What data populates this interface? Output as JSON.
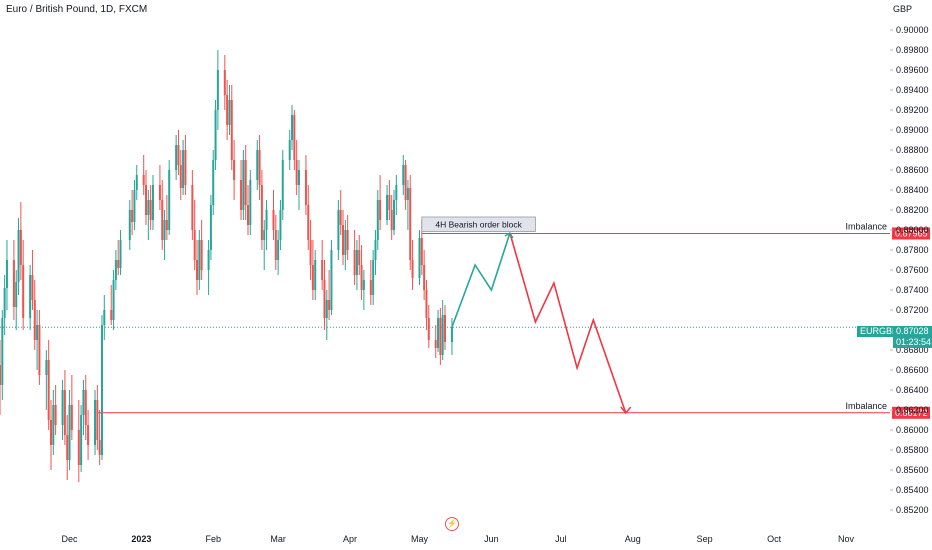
{
  "header": {
    "symbol_title": "Euro / British Pound, 1D, FXCM",
    "currency": "GBP"
  },
  "price_tags": {
    "symbol": "EURGBP",
    "last_price": "0.87028",
    "countdown": "01:23:54"
  },
  "colors": {
    "up": "#26a69a",
    "down": "#ef5350",
    "level": "#f23645",
    "last_price_line": "#26a69a",
    "axis_text": "#131722"
  },
  "chart_data": {
    "type": "candlestick",
    "title": "Euro / British Pound, 1D, FXCM",
    "y_axis": {
      "label": "GBP",
      "range": [
        0.851,
        0.901
      ],
      "ticks": [
        "0.90000",
        "0.89800",
        "0.89600",
        "0.89400",
        "0.89200",
        "0.89000",
        "0.88800",
        "0.88600",
        "0.88400",
        "0.88200",
        "0.88000",
        "0.87800",
        "0.87600",
        "0.87400",
        "0.87200",
        "0.87000",
        "0.86800",
        "0.86600",
        "0.86400",
        "0.86200",
        "0.86000",
        "0.85800",
        "0.85600",
        "0.85400",
        "0.85200"
      ]
    },
    "x_axis": {
      "range": [
        "2022-11-01",
        "2023-11-20"
      ],
      "ticks": [
        {
          "date": "2022-12-01",
          "label": "Dec"
        },
        {
          "date": "2023-01-01",
          "label": "2023",
          "bold": true
        },
        {
          "date": "2023-02-01",
          "label": "Feb"
        },
        {
          "date": "2023-03-01",
          "label": "Mar"
        },
        {
          "date": "2023-04-01",
          "label": "Apr"
        },
        {
          "date": "2023-05-01",
          "label": "May"
        },
        {
          "date": "2023-06-01",
          "label": "Jun"
        },
        {
          "date": "2023-07-01",
          "label": "Jul"
        },
        {
          "date": "2023-08-01",
          "label": "Aug"
        },
        {
          "date": "2023-09-01",
          "label": "Sep"
        },
        {
          "date": "2023-10-01",
          "label": "Oct"
        },
        {
          "date": "2023-11-01",
          "label": "Nov"
        }
      ]
    },
    "candles": [
      [
        "2022-11-01",
        0.8665,
        0.869,
        0.8615,
        0.8645
      ],
      [
        "2022-11-02",
        0.8645,
        0.872,
        0.863,
        0.8712
      ],
      [
        "2022-11-03",
        0.8712,
        0.8755,
        0.8695,
        0.8742
      ],
      [
        "2022-11-04",
        0.8742,
        0.879,
        0.872,
        0.877
      ],
      [
        "2022-11-07",
        0.877,
        0.879,
        0.871,
        0.8723
      ],
      [
        "2022-11-08",
        0.8723,
        0.876,
        0.87,
        0.8748
      ],
      [
        "2022-11-09",
        0.8748,
        0.8812,
        0.8735,
        0.88
      ],
      [
        "2022-11-10",
        0.88,
        0.8828,
        0.875,
        0.8765
      ],
      [
        "2022-11-11",
        0.8765,
        0.879,
        0.87,
        0.8712
      ],
      [
        "2022-11-14",
        0.8712,
        0.8765,
        0.87,
        0.8755
      ],
      [
        "2022-11-15",
        0.8755,
        0.878,
        0.872,
        0.873
      ],
      [
        "2022-11-16",
        0.873,
        0.875,
        0.868,
        0.869
      ],
      [
        "2022-11-17",
        0.869,
        0.872,
        0.866,
        0.8705
      ],
      [
        "2022-11-18",
        0.8705,
        0.872,
        0.8645,
        0.8655
      ],
      [
        "2022-11-21",
        0.8655,
        0.868,
        0.862,
        0.867
      ],
      [
        "2022-11-22",
        0.867,
        0.869,
        0.86,
        0.861
      ],
      [
        "2022-11-23",
        0.861,
        0.863,
        0.856,
        0.8585
      ],
      [
        "2022-11-24",
        0.8585,
        0.864,
        0.8575,
        0.8625
      ],
      [
        "2022-11-25",
        0.8625,
        0.8645,
        0.8595,
        0.8605
      ],
      [
        "2022-11-28",
        0.8605,
        0.865,
        0.859,
        0.864
      ],
      [
        "2022-11-29",
        0.864,
        0.866,
        0.8585,
        0.8595
      ],
      [
        "2022-11-30",
        0.8595,
        0.8615,
        0.855,
        0.857
      ],
      [
        "2022-12-01",
        0.857,
        0.864,
        0.856,
        0.8625
      ],
      [
        "2022-12-02",
        0.8625,
        0.8655,
        0.859,
        0.86
      ],
      [
        "2022-12-05",
        0.86,
        0.863,
        0.8548,
        0.8565
      ],
      [
        "2022-12-06",
        0.8565,
        0.8625,
        0.8558,
        0.8615
      ],
      [
        "2022-12-07",
        0.8615,
        0.865,
        0.8595,
        0.864
      ],
      [
        "2022-12-08",
        0.864,
        0.8655,
        0.859,
        0.8605
      ],
      [
        "2022-12-09",
        0.8605,
        0.862,
        0.857,
        0.8585
      ],
      [
        "2022-12-12",
        0.8585,
        0.864,
        0.8575,
        0.863
      ],
      [
        "2022-12-13",
        0.863,
        0.8645,
        0.858,
        0.859
      ],
      [
        "2022-12-14",
        0.859,
        0.862,
        0.8565,
        0.8575
      ],
      [
        "2022-12-15",
        0.8575,
        0.8715,
        0.857,
        0.8705
      ],
      [
        "2022-12-16",
        0.8705,
        0.8735,
        0.869,
        0.872
      ],
      [
        "2022-12-19",
        0.872,
        0.8745,
        0.8705,
        0.871
      ],
      [
        "2022-12-20",
        0.871,
        0.876,
        0.87,
        0.875
      ],
      [
        "2022-12-21",
        0.875,
        0.878,
        0.874,
        0.877
      ],
      [
        "2022-12-22",
        0.877,
        0.879,
        0.8755,
        0.8762
      ],
      [
        "2022-12-23",
        0.8762,
        0.88,
        0.8755,
        0.879
      ],
      [
        "2022-12-27",
        0.879,
        0.883,
        0.878,
        0.882
      ],
      [
        "2022-12-28",
        0.882,
        0.884,
        0.8795,
        0.8808
      ],
      [
        "2022-12-29",
        0.8808,
        0.885,
        0.88,
        0.884
      ],
      [
        "2022-12-30",
        0.884,
        0.8865,
        0.883,
        0.8855
      ],
      [
        "2023-01-02",
        0.8855,
        0.8875,
        0.8835,
        0.8845
      ],
      [
        "2023-01-03",
        0.8845,
        0.886,
        0.8805,
        0.8815
      ],
      [
        "2023-01-04",
        0.8815,
        0.884,
        0.879,
        0.883
      ],
      [
        "2023-01-05",
        0.883,
        0.8845,
        0.88,
        0.881
      ],
      [
        "2023-01-06",
        0.881,
        0.8855,
        0.88,
        0.8845
      ],
      [
        "2023-01-09",
        0.8845,
        0.8865,
        0.882,
        0.883
      ],
      [
        "2023-01-10",
        0.883,
        0.885,
        0.878,
        0.879
      ],
      [
        "2023-01-11",
        0.879,
        0.882,
        0.877,
        0.881
      ],
      [
        "2023-01-12",
        0.881,
        0.8835,
        0.879,
        0.88
      ],
      [
        "2023-01-13",
        0.88,
        0.887,
        0.8795,
        0.886
      ],
      [
        "2023-01-16",
        0.886,
        0.8895,
        0.885,
        0.8885
      ],
      [
        "2023-01-17",
        0.8885,
        0.89,
        0.8855,
        0.8865
      ],
      [
        "2023-01-18",
        0.8865,
        0.888,
        0.883,
        0.8842
      ],
      [
        "2023-01-19",
        0.8842,
        0.889,
        0.8835,
        0.888
      ],
      [
        "2023-01-20",
        0.888,
        0.8895,
        0.8835,
        0.8845
      ],
      [
        "2023-01-23",
        0.8845,
        0.886,
        0.879,
        0.88
      ],
      [
        "2023-01-24",
        0.88,
        0.883,
        0.876,
        0.877
      ],
      [
        "2023-01-25",
        0.877,
        0.879,
        0.8735,
        0.875
      ],
      [
        "2023-01-26",
        0.875,
        0.88,
        0.874,
        0.879
      ],
      [
        "2023-01-27",
        0.879,
        0.881,
        0.875,
        0.876
      ],
      [
        "2023-01-30",
        0.876,
        0.879,
        0.8735,
        0.878
      ],
      [
        "2023-01-31",
        0.878,
        0.8835,
        0.877,
        0.8825
      ],
      [
        "2023-02-01",
        0.8825,
        0.888,
        0.8815,
        0.887
      ],
      [
        "2023-02-02",
        0.887,
        0.893,
        0.886,
        0.892
      ],
      [
        "2023-02-03",
        0.892,
        0.898,
        0.89,
        0.896
      ],
      [
        "2023-02-06",
        0.896,
        0.8975,
        0.892,
        0.8935
      ],
      [
        "2023-02-07",
        0.8935,
        0.895,
        0.889,
        0.8905
      ],
      [
        "2023-02-08",
        0.8905,
        0.8945,
        0.8895,
        0.893
      ],
      [
        "2023-02-09",
        0.893,
        0.8945,
        0.886,
        0.887
      ],
      [
        "2023-02-10",
        0.887,
        0.889,
        0.883,
        0.885
      ],
      [
        "2023-02-13",
        0.885,
        0.887,
        0.881,
        0.882
      ],
      [
        "2023-02-14",
        0.882,
        0.888,
        0.881,
        0.887
      ],
      [
        "2023-02-15",
        0.887,
        0.8885,
        0.881,
        0.8825
      ],
      [
        "2023-02-16",
        0.8825,
        0.8845,
        0.8795,
        0.8805
      ],
      [
        "2023-02-17",
        0.8805,
        0.886,
        0.8795,
        0.885
      ],
      [
        "2023-02-20",
        0.885,
        0.889,
        0.884,
        0.888
      ],
      [
        "2023-02-21",
        0.888,
        0.8895,
        0.883,
        0.8845
      ],
      [
        "2023-02-22",
        0.8845,
        0.886,
        0.878,
        0.879
      ],
      [
        "2023-02-23",
        0.879,
        0.881,
        0.876,
        0.88
      ],
      [
        "2023-02-24",
        0.88,
        0.883,
        0.878,
        0.882
      ],
      [
        "2023-02-27",
        0.882,
        0.884,
        0.879,
        0.88
      ],
      [
        "2023-02-28",
        0.88,
        0.8815,
        0.876,
        0.877
      ],
      [
        "2023-03-01",
        0.877,
        0.88,
        0.8755,
        0.879
      ],
      [
        "2023-03-02",
        0.879,
        0.883,
        0.878,
        0.882
      ],
      [
        "2023-03-03",
        0.882,
        0.888,
        0.881,
        0.887
      ],
      [
        "2023-03-06",
        0.887,
        0.89,
        0.886,
        0.889
      ],
      [
        "2023-03-07",
        0.889,
        0.8925,
        0.888,
        0.8915
      ],
      [
        "2023-03-08",
        0.8915,
        0.892,
        0.886,
        0.887
      ],
      [
        "2023-03-09",
        0.887,
        0.889,
        0.8835,
        0.8845
      ],
      [
        "2023-03-10",
        0.8845,
        0.887,
        0.882,
        0.886
      ],
      [
        "2023-03-13",
        0.886,
        0.8875,
        0.8815,
        0.8825
      ],
      [
        "2023-03-14",
        0.8825,
        0.8845,
        0.878,
        0.879
      ],
      [
        "2023-03-15",
        0.879,
        0.881,
        0.875,
        0.8765
      ],
      [
        "2023-03-16",
        0.8765,
        0.879,
        0.873,
        0.874
      ],
      [
        "2023-03-17",
        0.874,
        0.878,
        0.873,
        0.877
      ],
      [
        "2023-03-20",
        0.877,
        0.879,
        0.874,
        0.875
      ],
      [
        "2023-03-21",
        0.875,
        0.877,
        0.87,
        0.8712
      ],
      [
        "2023-03-22",
        0.8712,
        0.874,
        0.869,
        0.873
      ],
      [
        "2023-03-23",
        0.873,
        0.876,
        0.871,
        0.872
      ],
      [
        "2023-03-24",
        0.872,
        0.879,
        0.8715,
        0.878
      ],
      [
        "2023-03-27",
        0.878,
        0.883,
        0.877,
        0.882
      ],
      [
        "2023-03-28",
        0.882,
        0.884,
        0.8795,
        0.8805
      ],
      [
        "2023-03-29",
        0.8805,
        0.882,
        0.8765,
        0.8775
      ],
      [
        "2023-03-30",
        0.8775,
        0.881,
        0.876,
        0.88
      ],
      [
        "2023-03-31",
        0.88,
        0.8815,
        0.877,
        0.878
      ],
      [
        "2023-04-03",
        0.878,
        0.88,
        0.8745,
        0.8755
      ],
      [
        "2023-04-04",
        0.8755,
        0.879,
        0.874,
        0.878
      ],
      [
        "2023-04-05",
        0.878,
        0.8795,
        0.8755,
        0.8765
      ],
      [
        "2023-04-06",
        0.8765,
        0.8785,
        0.873,
        0.874
      ],
      [
        "2023-04-07",
        0.874,
        0.876,
        0.872,
        0.875
      ],
      [
        "2023-04-10",
        0.875,
        0.877,
        0.8725,
        0.8735
      ],
      [
        "2023-04-11",
        0.8735,
        0.878,
        0.8725,
        0.877
      ],
      [
        "2023-04-12",
        0.877,
        0.88,
        0.8755,
        0.879
      ],
      [
        "2023-04-13",
        0.879,
        0.884,
        0.878,
        0.883
      ],
      [
        "2023-04-14",
        0.883,
        0.8855,
        0.88,
        0.881
      ],
      [
        "2023-04-17",
        0.881,
        0.8845,
        0.8805,
        0.8835
      ],
      [
        "2023-04-18",
        0.8835,
        0.885,
        0.881,
        0.882
      ],
      [
        "2023-04-19",
        0.882,
        0.8835,
        0.879,
        0.88
      ],
      [
        "2023-04-20",
        0.88,
        0.884,
        0.8795,
        0.883
      ],
      [
        "2023-04-21",
        0.883,
        0.8855,
        0.8815,
        0.8845
      ],
      [
        "2023-04-24",
        0.8845,
        0.8875,
        0.8835,
        0.8865
      ],
      [
        "2023-04-25",
        0.8865,
        0.887,
        0.882,
        0.883
      ],
      [
        "2023-04-26",
        0.883,
        0.885,
        0.88,
        0.8842
      ],
      [
        "2023-04-27",
        0.8842,
        0.8855,
        0.876,
        0.877
      ],
      [
        "2023-04-28",
        0.877,
        0.879,
        0.874,
        0.8752
      ],
      [
        "2023-05-01",
        0.8752,
        0.88,
        0.8745,
        0.8792
      ],
      [
        "2023-05-02",
        0.8792,
        0.881,
        0.8755,
        0.8765
      ],
      [
        "2023-05-03",
        0.8765,
        0.878,
        0.873,
        0.874
      ],
      [
        "2023-05-04",
        0.874,
        0.875,
        0.87,
        0.8712
      ],
      [
        "2023-05-05",
        0.8712,
        0.8725,
        0.8682,
        0.869
      ],
      [
        "2023-05-08",
        0.869,
        0.8705,
        0.8672,
        0.8682
      ],
      [
        "2023-05-09",
        0.8682,
        0.872,
        0.8678,
        0.8712
      ],
      [
        "2023-05-10",
        0.8712,
        0.8722,
        0.8665,
        0.8675
      ],
      [
        "2023-05-11",
        0.8675,
        0.873,
        0.867,
        0.8715
      ],
      [
        "2023-05-12",
        0.8715,
        0.8725,
        0.868,
        0.8688
      ],
      [
        "2023-05-15",
        0.8688,
        0.8712,
        0.8675,
        0.8703
      ]
    ],
    "order_block": {
      "label": "4H Bearish order block",
      "x_start": "2023-05-02",
      "x_end": "2023-06-20",
      "y_top": 0.8813,
      "y_bottom": 0.87985
    },
    "levels": [
      {
        "label": "Imbalance",
        "value": "0.87965",
        "x_start": "2023-05-02"
      },
      {
        "label": "Imbalance",
        "value": "0.86172",
        "x_start": "2022-12-13"
      }
    ],
    "last_price": {
      "value": 0.87028,
      "x_start": "2022-11-01"
    },
    "projection_up": [
      [
        "2023-05-15",
        0.8703
      ],
      [
        "2023-05-25",
        0.8765
      ],
      [
        "2023-06-01",
        0.874
      ],
      [
        "2023-06-09",
        0.8797
      ]
    ],
    "projection_down": [
      [
        "2023-06-09",
        0.8797
      ],
      [
        "2023-06-20",
        0.8708
      ],
      [
        "2023-06-28",
        0.8747
      ],
      [
        "2023-07-08",
        0.8662
      ],
      [
        "2023-07-15",
        0.871
      ],
      [
        "2023-07-29",
        0.8617
      ]
    ],
    "grid": false,
    "legend": "none"
  }
}
